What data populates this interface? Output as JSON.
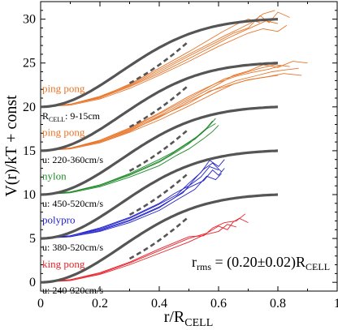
{
  "chart_data": {
    "type": "line",
    "xlabel": "r/R",
    "xlabel_sub": "CELL",
    "ylabel": "V(r)/kT + const",
    "xlim": [
      0,
      1
    ],
    "ylim": [
      -1,
      32
    ],
    "xticks": [
      0,
      0.2,
      0.4,
      0.6,
      0.8,
      1
    ],
    "xtick_labels": [
      "0",
      "0.2",
      "0.4",
      "0.6",
      "0.8",
      "1"
    ],
    "yticks": [
      0,
      5,
      10,
      15,
      20,
      25,
      30
    ],
    "ytick_labels": [
      "0",
      "5",
      "10",
      "15",
      "20",
      "25",
      "30"
    ],
    "annotation": {
      "r": "r",
      "r_sub": "rms",
      "eq": " = (0.20±0.02)R",
      "cell_sub": "CELL"
    },
    "groups": [
      {
        "name": "king pong",
        "velocity": "u: 240-320cm/s",
        "color": "#e8232b",
        "offset": 0,
        "label_y": 1.7,
        "vel_y": -1.3,
        "exp_end": 0.7,
        "parabola_end": 0.5,
        "curves": [
          [
            [
              0,
              0
            ],
            [
              0.1,
              0.3
            ],
            [
              0.2,
              1.0
            ],
            [
              0.3,
              2.2
            ],
            [
              0.4,
              3.6
            ],
            [
              0.5,
              5.0
            ],
            [
              0.56,
              5.6
            ],
            [
              0.6,
              6.4
            ],
            [
              0.63,
              6.0
            ],
            [
              0.65,
              6.9
            ],
            [
              0.67,
              7.3
            ],
            [
              0.7,
              6.8
            ]
          ],
          [
            [
              0,
              0
            ],
            [
              0.1,
              0.3
            ],
            [
              0.2,
              1.1
            ],
            [
              0.3,
              2.3
            ],
            [
              0.4,
              3.8
            ],
            [
              0.5,
              5.2
            ],
            [
              0.55,
              5.3
            ],
            [
              0.58,
              6.2
            ],
            [
              0.62,
              6.8
            ],
            [
              0.66,
              7.0
            ],
            [
              0.69,
              7.8
            ]
          ],
          [
            [
              0,
              0
            ],
            [
              0.1,
              0.2
            ],
            [
              0.2,
              0.9
            ],
            [
              0.3,
              2.0
            ],
            [
              0.4,
              3.3
            ],
            [
              0.5,
              4.6
            ],
            [
              0.55,
              5.4
            ],
            [
              0.6,
              5.8
            ],
            [
              0.63,
              6.6
            ],
            [
              0.66,
              6.3
            ]
          ]
        ]
      },
      {
        "name": "polypro",
        "velocity": "u: 380-520cm/s",
        "color": "#2222cc",
        "offset": 5,
        "label_y": 6.7,
        "vel_y": 3.6,
        "exp_end": 0.8,
        "parabola_end": 0.5,
        "curves": [
          [
            [
              0,
              0
            ],
            [
              0.1,
              0.2
            ],
            [
              0.2,
              0.9
            ],
            [
              0.3,
              2.0
            ],
            [
              0.4,
              3.5
            ],
            [
              0.45,
              4.6
            ],
            [
              0.5,
              5.8
            ],
            [
              0.55,
              6.6
            ],
            [
              0.58,
              7.8
            ],
            [
              0.6,
              7.2
            ],
            [
              0.62,
              8.0
            ]
          ],
          [
            [
              0,
              0
            ],
            [
              0.1,
              0.3
            ],
            [
              0.2,
              1.1
            ],
            [
              0.3,
              2.3
            ],
            [
              0.4,
              3.9
            ],
            [
              0.46,
              5.0
            ],
            [
              0.5,
              6.3
            ],
            [
              0.54,
              7.5
            ],
            [
              0.57,
              8.9
            ],
            [
              0.6,
              8.2
            ],
            [
              0.62,
              9.0
            ]
          ],
          [
            [
              0,
              0
            ],
            [
              0.1,
              0.3
            ],
            [
              0.2,
              1.0
            ],
            [
              0.3,
              2.1
            ],
            [
              0.4,
              3.6
            ],
            [
              0.48,
              5.2
            ],
            [
              0.52,
              6.8
            ],
            [
              0.55,
              7.9
            ],
            [
              0.58,
              8.6
            ],
            [
              0.61,
              7.6
            ]
          ],
          [
            [
              0,
              0
            ],
            [
              0.1,
              0.2
            ],
            [
              0.2,
              0.8
            ],
            [
              0.3,
              1.8
            ],
            [
              0.4,
              3.2
            ],
            [
              0.47,
              4.6
            ],
            [
              0.52,
              5.6
            ],
            [
              0.56,
              7.1
            ],
            [
              0.59,
              6.7
            ],
            [
              0.61,
              7.4
            ]
          ],
          [
            [
              0,
              0
            ],
            [
              0.1,
              0.3
            ],
            [
              0.2,
              1.2
            ],
            [
              0.3,
              2.4
            ],
            [
              0.4,
              4.0
            ],
            [
              0.45,
              5.1
            ],
            [
              0.5,
              6.0
            ],
            [
              0.54,
              7.0
            ],
            [
              0.57,
              8.2
            ],
            [
              0.6,
              7.8
            ]
          ]
        ]
      },
      {
        "name": "nylon",
        "velocity": "u: 450-520cm/s",
        "color": "#1f8a2a",
        "offset": 10,
        "label_y": 11.7,
        "vel_y": 8.6,
        "exp_end": 0.8,
        "parabola_end": 0.5,
        "curves": [
          [
            [
              0,
              0
            ],
            [
              0.1,
              0.3
            ],
            [
              0.2,
              1.0
            ],
            [
              0.3,
              2.2
            ],
            [
              0.4,
              3.7
            ],
            [
              0.46,
              4.9
            ],
            [
              0.5,
              5.8
            ],
            [
              0.53,
              6.7
            ],
            [
              0.56,
              7.6
            ],
            [
              0.58,
              8.4
            ]
          ],
          [
            [
              0,
              0
            ],
            [
              0.1,
              0.3
            ],
            [
              0.2,
              1.1
            ],
            [
              0.3,
              2.4
            ],
            [
              0.4,
              4.0
            ],
            [
              0.45,
              4.9
            ],
            [
              0.5,
              6.0
            ],
            [
              0.54,
              6.9
            ],
            [
              0.57,
              7.9
            ],
            [
              0.59,
              8.7
            ]
          ],
          [
            [
              0,
              0
            ],
            [
              0.1,
              0.2
            ],
            [
              0.2,
              0.9
            ],
            [
              0.3,
              2.0
            ],
            [
              0.4,
              3.3
            ],
            [
              0.46,
              4.5
            ],
            [
              0.5,
              5.2
            ],
            [
              0.55,
              6.4
            ],
            [
              0.58,
              7.2
            ],
            [
              0.6,
              7.9
            ]
          ],
          [
            [
              0,
              0
            ],
            [
              0.1,
              0.3
            ],
            [
              0.2,
              1.1
            ],
            [
              0.3,
              2.3
            ],
            [
              0.4,
              3.8
            ],
            [
              0.44,
              4.6
            ],
            [
              0.49,
              5.7
            ],
            [
              0.52,
              6.3
            ],
            [
              0.56,
              7.5
            ],
            [
              0.59,
              8.1
            ]
          ]
        ]
      },
      {
        "name": "ping pong",
        "velocity": "u: 220-360cm/s",
        "color": "#e8752a",
        "offset": 15,
        "label_y": 16.7,
        "vel_y": 13.6,
        "exp_end": 0.9,
        "parabola_end": 0.5,
        "curves": [
          [
            [
              0,
              0
            ],
            [
              0.1,
              0.3
            ],
            [
              0.2,
              1.1
            ],
            [
              0.3,
              2.4
            ],
            [
              0.4,
              4.0
            ],
            [
              0.5,
              5.8
            ],
            [
              0.6,
              7.6
            ],
            [
              0.65,
              8.6
            ],
            [
              0.7,
              9.1
            ],
            [
              0.75,
              9.8
            ],
            [
              0.8,
              9.5
            ],
            [
              0.85,
              10.2
            ],
            [
              0.9,
              10.0
            ]
          ],
          [
            [
              0,
              0
            ],
            [
              0.1,
              0.3
            ],
            [
              0.2,
              1.0
            ],
            [
              0.3,
              2.3
            ],
            [
              0.4,
              3.8
            ],
            [
              0.5,
              5.6
            ],
            [
              0.6,
              7.2
            ],
            [
              0.66,
              8.0
            ],
            [
              0.72,
              8.5
            ],
            [
              0.78,
              9.0
            ],
            [
              0.82,
              9.2
            ],
            [
              0.87,
              9.4
            ]
          ],
          [
            [
              0,
              0
            ],
            [
              0.1,
              0.3
            ],
            [
              0.2,
              1.1
            ],
            [
              0.3,
              2.5
            ],
            [
              0.4,
              4.2
            ],
            [
              0.5,
              6.0
            ],
            [
              0.58,
              7.5
            ],
            [
              0.62,
              8.2
            ],
            [
              0.68,
              8.8
            ],
            [
              0.74,
              9.4
            ],
            [
              0.79,
              9.8
            ],
            [
              0.84,
              9.6
            ]
          ],
          [
            [
              0,
              0
            ],
            [
              0.1,
              0.2
            ],
            [
              0.2,
              0.9
            ],
            [
              0.3,
              2.1
            ],
            [
              0.4,
              3.5
            ],
            [
              0.5,
              5.1
            ],
            [
              0.6,
              6.8
            ],
            [
              0.65,
              7.6
            ],
            [
              0.7,
              8.1
            ],
            [
              0.76,
              8.4
            ],
            [
              0.82,
              8.8
            ],
            [
              0.88,
              8.6
            ]
          ],
          [
            [
              0,
              0
            ],
            [
              0.1,
              0.3
            ],
            [
              0.2,
              1.2
            ],
            [
              0.3,
              2.6
            ],
            [
              0.4,
              4.3
            ],
            [
              0.5,
              6.2
            ],
            [
              0.56,
              7.2
            ],
            [
              0.6,
              7.8
            ],
            [
              0.66,
              8.5
            ],
            [
              0.71,
              8.9
            ],
            [
              0.77,
              9.3
            ],
            [
              0.81,
              9.7
            ]
          ],
          [
            [
              0,
              0
            ],
            [
              0.1,
              0.3
            ],
            [
              0.2,
              1.0
            ],
            [
              0.3,
              2.2
            ],
            [
              0.4,
              3.9
            ],
            [
              0.5,
              5.4
            ],
            [
              0.57,
              6.8
            ],
            [
              0.63,
              7.4
            ],
            [
              0.69,
              8.0
            ],
            [
              0.74,
              8.3
            ],
            [
              0.8,
              8.6
            ]
          ]
        ]
      },
      {
        "name": "ping pong",
        "velocity": "9-15cm",
        "velocity_prefix": "R",
        "velocity_sub": "CELL",
        "color": "#e8752a",
        "offset": 20,
        "label_y": 21.7,
        "vel_y": 18.6,
        "exp_end": 0.8,
        "parabola_end": 0.5,
        "curves": [
          [
            [
              0,
              0
            ],
            [
              0.1,
              0.3
            ],
            [
              0.2,
              1.1
            ],
            [
              0.3,
              2.4
            ],
            [
              0.4,
              4.0
            ],
            [
              0.5,
              5.8
            ],
            [
              0.6,
              7.5
            ],
            [
              0.65,
              8.4
            ],
            [
              0.7,
              9.0
            ],
            [
              0.74,
              10.4
            ],
            [
              0.77,
              9.6
            ],
            [
              0.8,
              10.8
            ],
            [
              0.84,
              10.2
            ]
          ],
          [
            [
              0,
              0
            ],
            [
              0.1,
              0.3
            ],
            [
              0.2,
              1.0
            ],
            [
              0.3,
              2.3
            ],
            [
              0.4,
              3.8
            ],
            [
              0.5,
              5.5
            ],
            [
              0.58,
              6.9
            ],
            [
              0.63,
              7.8
            ],
            [
              0.68,
              8.6
            ],
            [
              0.72,
              9.2
            ],
            [
              0.76,
              9.8
            ],
            [
              0.8,
              9.5
            ]
          ],
          [
            [
              0,
              0
            ],
            [
              0.1,
              0.3
            ],
            [
              0.2,
              1.2
            ],
            [
              0.3,
              2.5
            ],
            [
              0.4,
              4.2
            ],
            [
              0.5,
              6.0
            ],
            [
              0.57,
              7.2
            ],
            [
              0.62,
              8.1
            ],
            [
              0.67,
              8.9
            ],
            [
              0.71,
              9.6
            ],
            [
              0.75,
              10.6
            ],
            [
              0.79,
              11.0
            ]
          ],
          [
            [
              0,
              0
            ],
            [
              0.1,
              0.2
            ],
            [
              0.2,
              0.9
            ],
            [
              0.3,
              2.1
            ],
            [
              0.4,
              3.6
            ],
            [
              0.5,
              5.2
            ],
            [
              0.6,
              6.9
            ],
            [
              0.66,
              7.8
            ],
            [
              0.7,
              8.4
            ],
            [
              0.75,
              8.9
            ],
            [
              0.8,
              8.6
            ],
            [
              0.83,
              9.3
            ]
          ],
          [
            [
              0,
              0
            ],
            [
              0.1,
              0.3
            ],
            [
              0.2,
              1.1
            ],
            [
              0.3,
              2.6
            ],
            [
              0.4,
              4.4
            ],
            [
              0.5,
              6.3
            ],
            [
              0.56,
              7.5
            ],
            [
              0.61,
              8.5
            ],
            [
              0.66,
              9.4
            ],
            [
              0.7,
              10.0
            ],
            [
              0.74,
              9.6
            ]
          ]
        ]
      }
    ]
  }
}
